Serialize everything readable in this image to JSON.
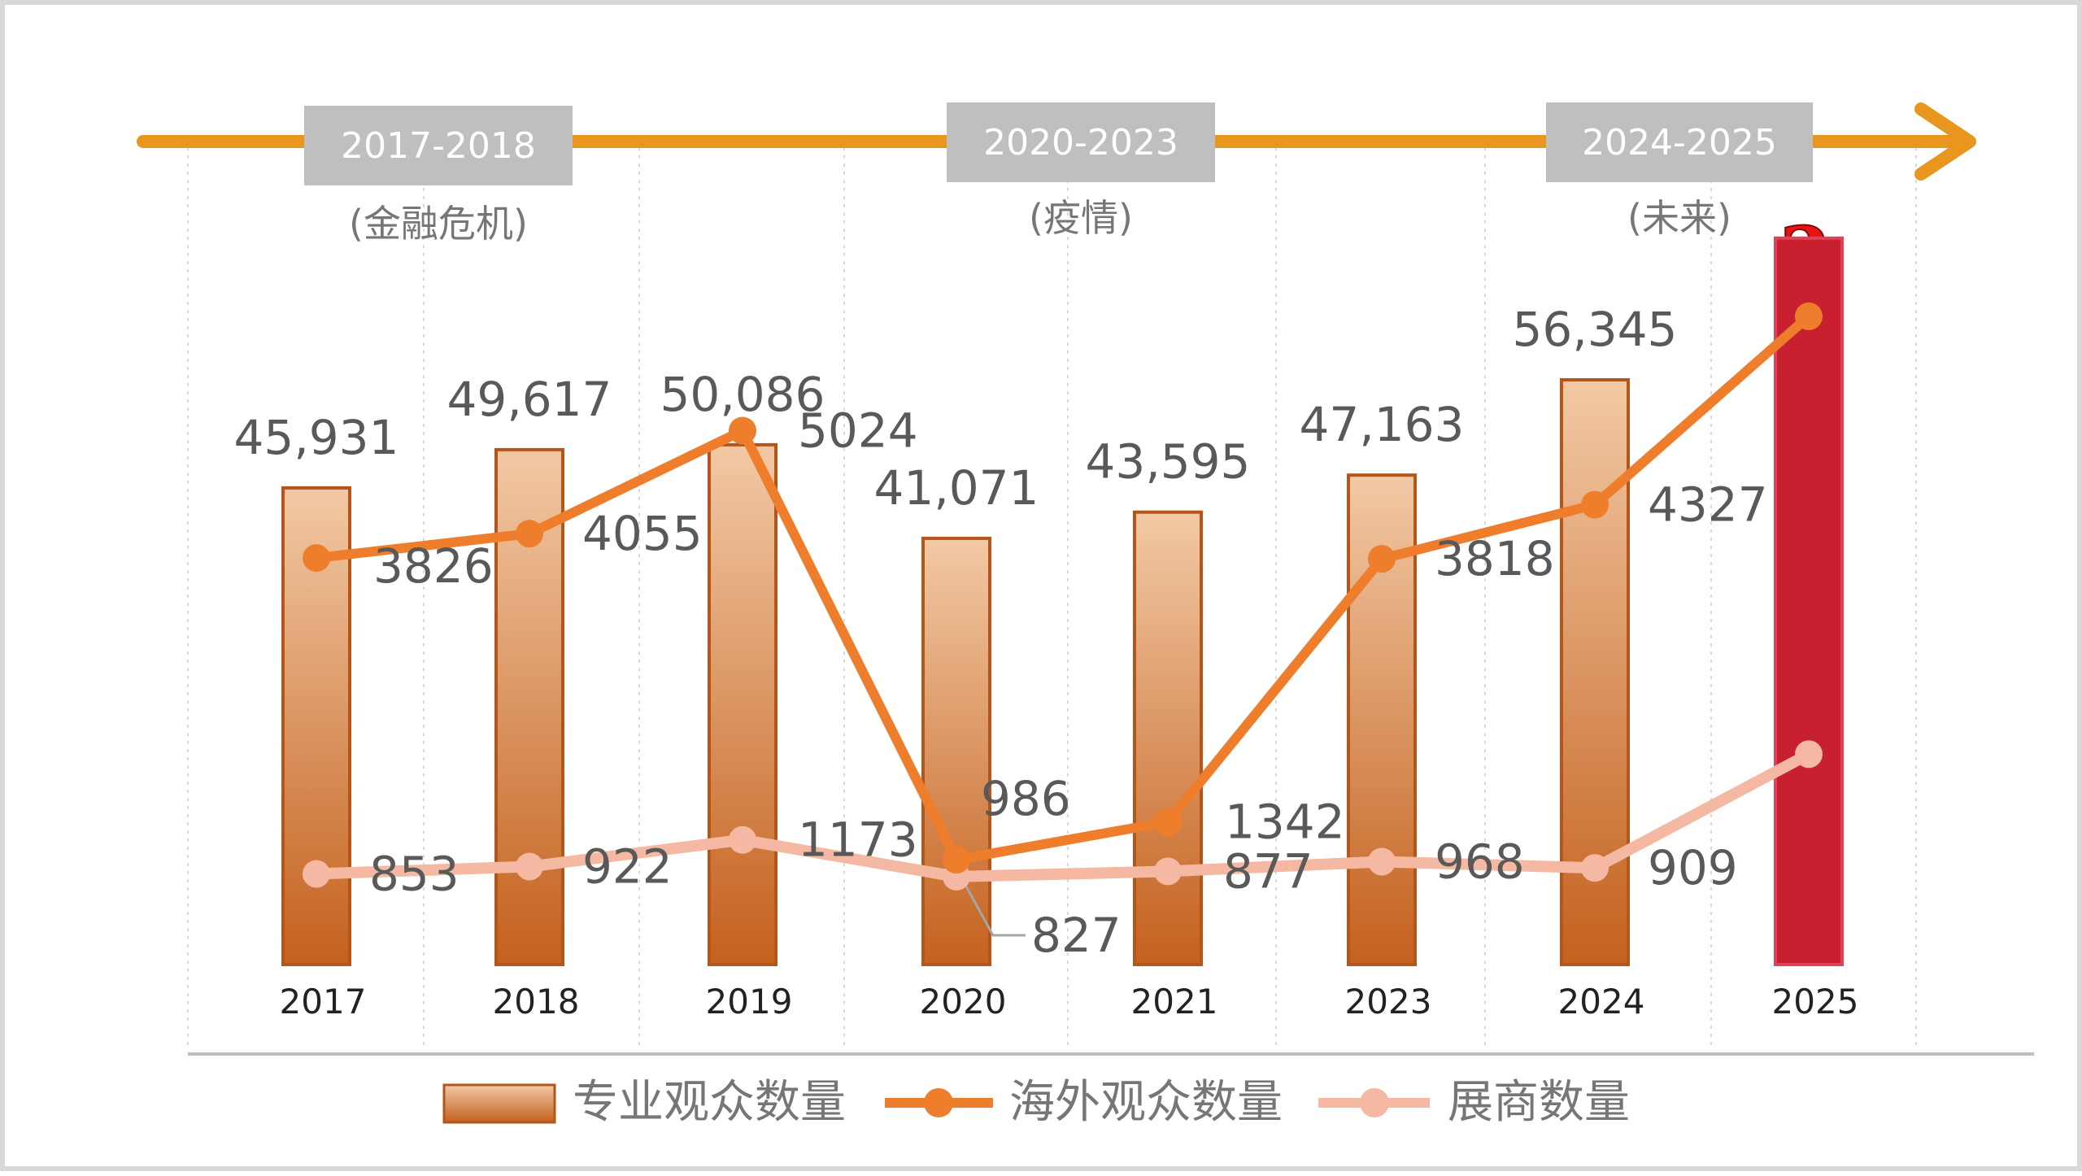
{
  "periods": [
    {
      "label": "2017-2018",
      "note": "(金融危机)"
    },
    {
      "label": "2020-2023",
      "note": "(疫情)"
    },
    {
      "label": "2024-2025",
      "note": "(未来)"
    }
  ],
  "question_mark": "?",
  "colors": {
    "timeline": "#e8961e",
    "period_box": "#bfbfbf",
    "bar_light": "#f2c9a5",
    "bar_dark": "#c4611e",
    "bar_highlight": "#c8202f",
    "overseas_line": "#ee7d2c",
    "exhibitor_line": "#f4b8a3",
    "label_text": "#595959",
    "question_mark": "#e81414"
  },
  "chart_data": {
    "type": "bar",
    "categories": [
      "2017",
      "2018",
      "2019",
      "2020",
      "2021",
      "2023",
      "2024",
      "2025"
    ],
    "series": [
      {
        "name": "专业观众数量",
        "type": "bar",
        "values": [
          45931,
          49617,
          50086,
          41071,
          43595,
          47163,
          56345,
          null
        ],
        "labels": [
          "45,931",
          "49,617",
          "50,086",
          "41,071",
          "43,595",
          "47,163",
          "56,345",
          ""
        ],
        "highlight_value": 70000
      },
      {
        "name": "海外观众数量",
        "type": "line",
        "values": [
          3826,
          4055,
          5024,
          986,
          1342,
          3818,
          4327,
          null
        ],
        "labels": [
          "3826",
          "4055",
          "5024",
          "986",
          "1342",
          "3818",
          "4327",
          ""
        ],
        "projected_value": 6100
      },
      {
        "name": "展商数量",
        "type": "line",
        "values": [
          853,
          922,
          1173,
          827,
          877,
          968,
          909,
          null
        ],
        "labels": [
          "853",
          "922",
          "1173",
          "827",
          "877",
          "968",
          "909",
          ""
        ],
        "projected_value": 1980
      }
    ],
    "bar_ylim": [
      0,
      75000
    ],
    "line_ylim": [
      0,
      7500
    ],
    "grid": false,
    "legend_position": "bottom"
  }
}
